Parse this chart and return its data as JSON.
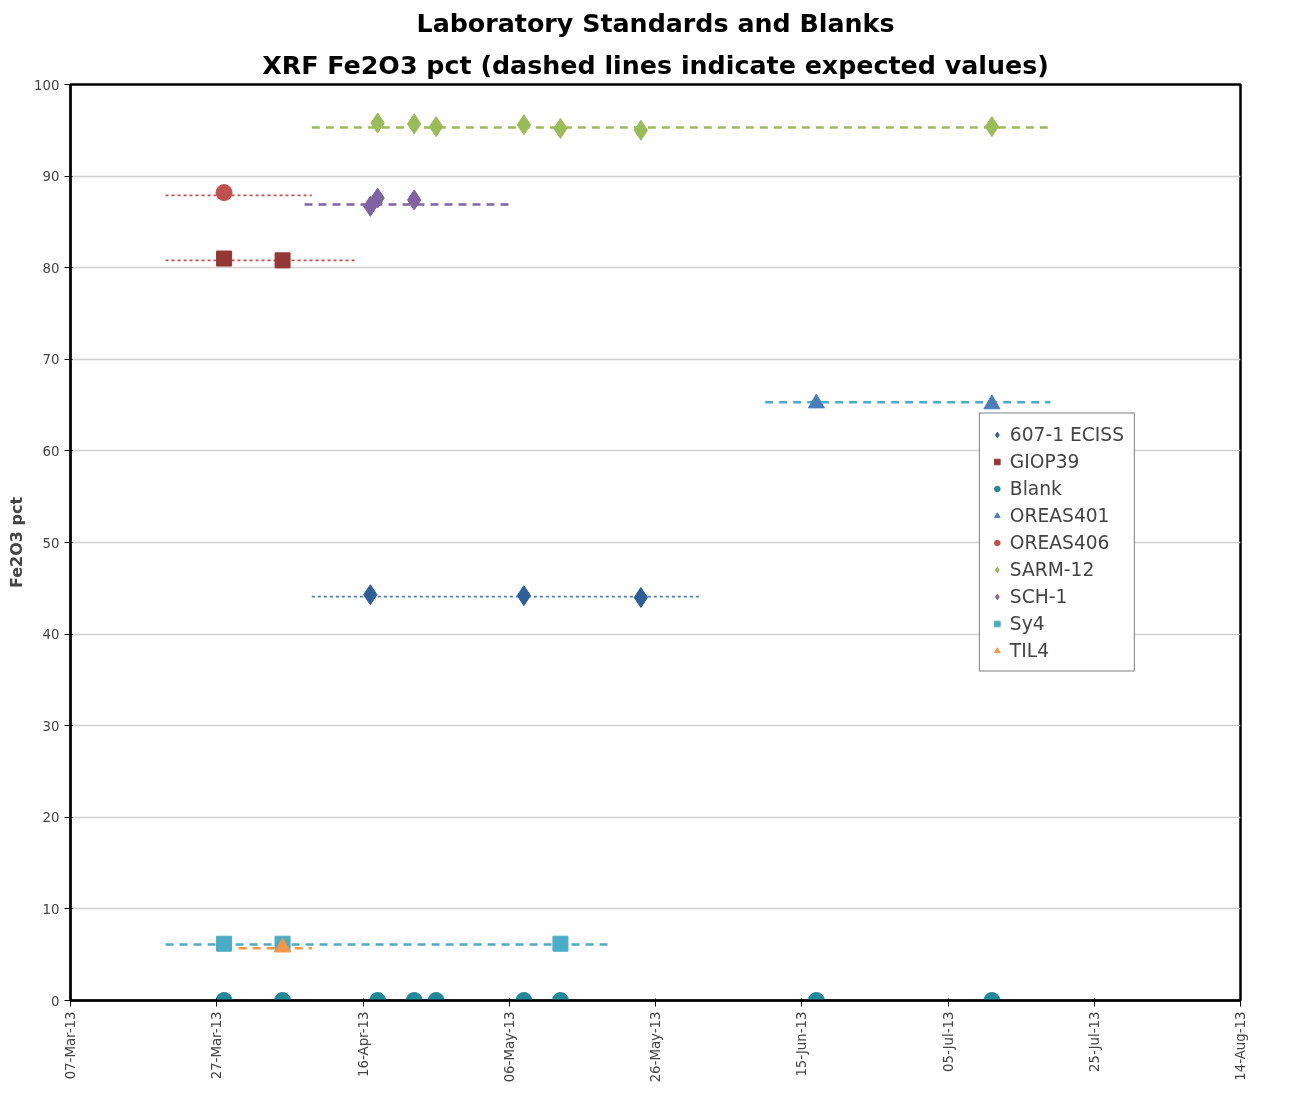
{
  "chart_data": {
    "type": "scatter",
    "title": "Laboratory Standards and Blanks",
    "subtitle": "XRF Fe2O3 pct (dashed lines indicate expected values)",
    "ylabel": "Fe2O3 pct",
    "xlim": [
      "2013-03-07",
      "2013-08-14"
    ],
    "xticks": [
      {
        "value": "2013-03-07",
        "label": "07-Mar-13"
      },
      {
        "value": "2013-03-27",
        "label": "27-Mar-13"
      },
      {
        "value": "2013-04-16",
        "label": "16-Apr-13"
      },
      {
        "value": "2013-05-06",
        "label": "06-May-13"
      },
      {
        "value": "2013-05-26",
        "label": "26-May-13"
      },
      {
        "value": "2013-06-15",
        "label": "15-Jun-13"
      },
      {
        "value": "2013-07-05",
        "label": "05-Jul-13"
      },
      {
        "value": "2013-07-25",
        "label": "25-Jul-13"
      },
      {
        "value": "2013-08-14",
        "label": "14-Aug-13"
      }
    ],
    "ylim": [
      0,
      100
    ],
    "yticks": [
      0,
      10,
      20,
      30,
      40,
      50,
      60,
      70,
      80,
      90,
      100
    ],
    "grid": "y",
    "legend": "right",
    "series": [
      {
        "type": "line",
        "line_style": "dotted",
        "color": "#4a7ebb",
        "x": [
          "2013-04-09",
          "2013-06-01"
        ],
        "values": [
          44.1,
          44.1
        ]
      },
      {
        "type": "line",
        "line_style": "dotted",
        "color": "#c0504d",
        "x": [
          "2013-03-20",
          "2013-04-15"
        ],
        "values": [
          80.8,
          80.8
        ]
      },
      {
        "type": "line",
        "line_style": "dotted",
        "color": "#c0504d",
        "x": [
          "2013-03-20",
          "2013-04-09"
        ],
        "values": [
          87.9,
          87.9
        ]
      },
      {
        "type": "line",
        "line_style": "dashed",
        "color": "#4bacc6",
        "x": [
          "2013-06-10",
          "2013-07-19"
        ],
        "values": [
          65.3,
          65.3
        ]
      },
      {
        "type": "line",
        "line_style": "dashed",
        "color": "#9bbb59",
        "x": [
          "2013-04-09",
          "2013-07-19"
        ],
        "values": [
          95.3,
          95.3
        ]
      },
      {
        "type": "line",
        "line_style": "dashed",
        "color": "#8064a2",
        "x": [
          "2013-04-08",
          "2013-05-06"
        ],
        "values": [
          86.9,
          86.9
        ]
      },
      {
        "type": "line",
        "line_style": "dashed",
        "color": "#4bacc6",
        "x": [
          "2013-03-20",
          "2013-05-20"
        ],
        "values": [
          6.1,
          6.1
        ]
      },
      {
        "type": "line",
        "line_style": "dashed",
        "color": "#f79646",
        "x": [
          "2013-03-30",
          "2013-04-09"
        ],
        "values": [
          5.7,
          5.7
        ]
      },
      {
        "name": "607-1 ECISS",
        "marker": "diamond",
        "color": "#2e5f9a",
        "x": [
          "2013-04-17",
          "2013-05-08",
          "2013-05-24"
        ],
        "values": [
          44.3,
          44.2,
          44.0
        ]
      },
      {
        "name": "GIOP39",
        "marker": "square",
        "color": "#953735",
        "x": [
          "2013-03-28",
          "2013-04-05"
        ],
        "values": [
          81.0,
          80.8
        ]
      },
      {
        "name": "Blank",
        "marker": "circle",
        "color": "#23889a",
        "x": [
          "2013-03-28",
          "2013-04-05",
          "2013-04-18",
          "2013-04-23",
          "2013-04-26",
          "2013-05-08",
          "2013-05-13",
          "2013-06-17",
          "2013-07-11"
        ],
        "values": [
          0,
          0,
          0,
          0,
          0,
          0,
          0,
          0,
          0
        ]
      },
      {
        "name": "OREAS401",
        "marker": "triangle",
        "color": "#4a7ebb",
        "x": [
          "2013-06-17",
          "2013-07-11"
        ],
        "values": [
          65.2,
          65.1
        ]
      },
      {
        "name": "OREAS406",
        "marker": "circle",
        "color": "#c0504d",
        "x": [
          "2013-03-28"
        ],
        "values": [
          88.2
        ]
      },
      {
        "name": "SARM-12",
        "marker": "diamond",
        "color": "#9bbb59",
        "x": [
          "2013-04-18",
          "2013-04-23",
          "2013-04-26",
          "2013-05-08",
          "2013-05-13",
          "2013-05-24",
          "2013-07-11"
        ],
        "values": [
          95.8,
          95.7,
          95.4,
          95.6,
          95.2,
          95.0,
          95.4
        ]
      },
      {
        "name": "SCH-1",
        "marker": "diamond",
        "color": "#8064a2",
        "x": [
          "2013-04-17",
          "2013-04-18",
          "2013-04-23"
        ],
        "values": [
          86.7,
          87.6,
          87.4
        ]
      },
      {
        "name": "Sy4",
        "marker": "square",
        "color": "#4bacc6",
        "x": [
          "2013-03-28",
          "2013-04-05",
          "2013-05-13"
        ],
        "values": [
          6.2,
          6.2,
          6.2
        ]
      },
      {
        "name": "TIL4",
        "marker": "triangle",
        "color": "#f79646",
        "x": [
          "2013-04-05"
        ],
        "values": [
          5.8
        ]
      }
    ]
  }
}
